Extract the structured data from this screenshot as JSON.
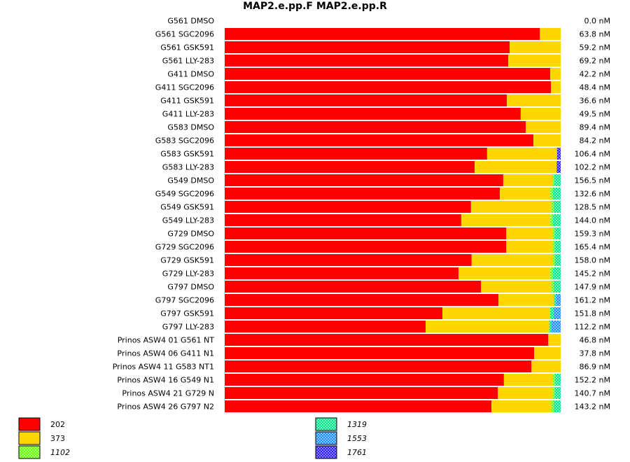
{
  "chart_data": {
    "type": "bar",
    "orientation": "horizontal",
    "stacked": true,
    "normalized": true,
    "title": "MAP2.e.pp.F  MAP2.e.pp.R",
    "xlabel": "",
    "ylabel": "",
    "grid": false,
    "legend_position": "bottom",
    "categories": [
      "G561 DMSO",
      "G561 SGC2096",
      "G561 GSK591",
      "G561 LLY-283",
      "G411 DMSO",
      "G411 SGC2096",
      "G411 GSK591",
      "G411 LLY-283",
      "G583 DMSO",
      "G583 SGC2096",
      "G583 GSK591",
      "G583 LLY-283",
      "G549 DMSO",
      "G549 SGC2096",
      "G549 GSK591",
      "G549 LLY-283",
      "G729 DMSO",
      "G729 SGC2096",
      "G729 GSK591",
      "G729 LLY-283",
      "G797 DMSO",
      "G797 SGC2096",
      "G797 GSK591",
      "G797 LLY-283",
      "Prinos ASW4 01 G561 NT",
      "Prinos ASW4 06 G411 N1",
      "Prinos ASW4 11 G583 NT1",
      "Prinos ASW4 16 G549 N1",
      "Prinos ASW4 21 G729 N",
      "Prinos ASW4 26 G797 N2"
    ],
    "concentrations": [
      "0.0 nM",
      "63.8 nM",
      "59.2 nM",
      "69.2 nM",
      "42.2 nM",
      "48.4 nM",
      "36.6 nM",
      "49.5 nM",
      "89.4 nM",
      "84.2 nM",
      "106.4 nM",
      "102.2 nM",
      "156.5 nM",
      "132.6 nM",
      "128.5 nM",
      "144.0 nM",
      "159.3 nM",
      "165.4 nM",
      "158.0 nM",
      "145.2 nM",
      "147.9 nM",
      "161.2 nM",
      "151.8 nM",
      "112.2 nM",
      "46.8 nM",
      "37.8 nM",
      "86.9 nM",
      "152.2 nM",
      "140.7 nM",
      "143.2 nM"
    ],
    "series": [
      {
        "name": "202",
        "color": "#ff0000",
        "pattern": "solid",
        "values": [
          0,
          93.8,
          84.8,
          84.4,
          96.9,
          97.1,
          84.0,
          88.1,
          89.6,
          91.9,
          78.1,
          74.4,
          82.9,
          81.9,
          73.3,
          70.4,
          83.8,
          83.8,
          73.5,
          69.6,
          76.3,
          81.5,
          64.8,
          59.8,
          96.3,
          92.1,
          91.3,
          83.1,
          81.3,
          79.4
        ]
      },
      {
        "name": "373",
        "color": "#ffd700",
        "pattern": "solid",
        "values": [
          0,
          6.2,
          15.2,
          15.6,
          3.1,
          2.9,
          16.0,
          11.9,
          10.4,
          8.1,
          20.8,
          24.4,
          14.6,
          15.0,
          23.8,
          26.5,
          13.8,
          13.8,
          24.2,
          27.3,
          20.8,
          16.5,
          32.1,
          36.8,
          3.7,
          7.9,
          8.7,
          14.6,
          16.3,
          17.7
        ]
      },
      {
        "name": "1102",
        "color": "#66ff00",
        "pattern": "check",
        "values": [
          0,
          0,
          0,
          0,
          0,
          0,
          0,
          0,
          0,
          0,
          0,
          0,
          0.6,
          0.8,
          0.8,
          0.8,
          0.6,
          0.6,
          0.6,
          0.8,
          0.8,
          0,
          0,
          0,
          0,
          0,
          0,
          0.6,
          0.6,
          0.8
        ]
      },
      {
        "name": "1319",
        "color": "#00e68a",
        "pattern": "check",
        "values": [
          0,
          0,
          0,
          0,
          0,
          0,
          0,
          0,
          0,
          0,
          0,
          0,
          1.9,
          2.3,
          2.1,
          2.3,
          1.8,
          1.8,
          1.7,
          2.3,
          2.1,
          0.6,
          1.0,
          0.6,
          0,
          0,
          0,
          1.7,
          1.8,
          2.1
        ]
      },
      {
        "name": "1553",
        "color": "#1e90ff",
        "pattern": "check",
        "values": [
          0,
          0,
          0,
          0,
          0,
          0,
          0,
          0,
          0,
          0,
          0,
          0,
          0,
          0,
          0,
          0,
          0,
          0,
          0,
          0,
          0,
          1.4,
          2.1,
          2.8,
          0,
          0,
          0,
          0,
          0,
          0
        ]
      },
      {
        "name": "1761",
        "color": "#2a1cff",
        "pattern": "check",
        "values": [
          0,
          0,
          0,
          0,
          0,
          0,
          0,
          0,
          0,
          0,
          1.1,
          1.2,
          0,
          0,
          0,
          0,
          0,
          0,
          0,
          0,
          0,
          0,
          0,
          0,
          0,
          0,
          0,
          0,
          0,
          0
        ]
      }
    ],
    "legend": [
      {
        "label": "202",
        "italic": false
      },
      {
        "label": "373",
        "italic": false
      },
      {
        "label": "1102",
        "italic": true
      },
      {
        "label": "1319",
        "italic": true
      },
      {
        "label": "1553",
        "italic": true
      },
      {
        "label": "1761",
        "italic": true
      }
    ]
  }
}
